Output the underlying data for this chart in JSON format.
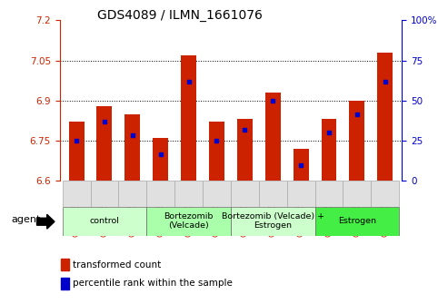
{
  "title": "GDS4089 / ILMN_1661076",
  "samples": [
    "GSM766676",
    "GSM766677",
    "GSM766678",
    "GSM766682",
    "GSM766683",
    "GSM766684",
    "GSM766685",
    "GSM766686",
    "GSM766687",
    "GSM766679",
    "GSM766680",
    "GSM766681"
  ],
  "red_values": [
    6.82,
    6.88,
    6.85,
    6.76,
    7.07,
    6.82,
    6.83,
    6.93,
    6.72,
    6.83,
    6.9,
    7.08
  ],
  "blue_values": [
    6.75,
    6.82,
    6.77,
    6.7,
    6.97,
    6.75,
    6.79,
    6.9,
    6.66,
    6.78,
    6.85,
    6.97
  ],
  "ymin": 6.6,
  "ymax": 7.2,
  "yticks": [
    6.6,
    6.75,
    6.9,
    7.05,
    7.2
  ],
  "right_yticks": [
    0,
    25,
    50,
    75,
    100
  ],
  "groups": [
    {
      "label": "control",
      "indices": [
        0,
        1,
        2
      ],
      "color": "#ccffcc"
    },
    {
      "label": "Bortezomib\n(Velcade)",
      "indices": [
        3,
        4,
        5
      ],
      "color": "#aaffaa"
    },
    {
      "label": "Bortezomib (Velcade) +\nEstrogen",
      "indices": [
        6,
        7,
        8
      ],
      "color": "#ccffcc"
    },
    {
      "label": "Estrogen",
      "indices": [
        9,
        10,
        11
      ],
      "color": "#44ee44"
    }
  ],
  "red_color": "#cc2200",
  "blue_color": "#0000cc",
  "legend_red": "transformed count",
  "legend_blue": "percentile rank within the sample",
  "bar_width": 0.55
}
